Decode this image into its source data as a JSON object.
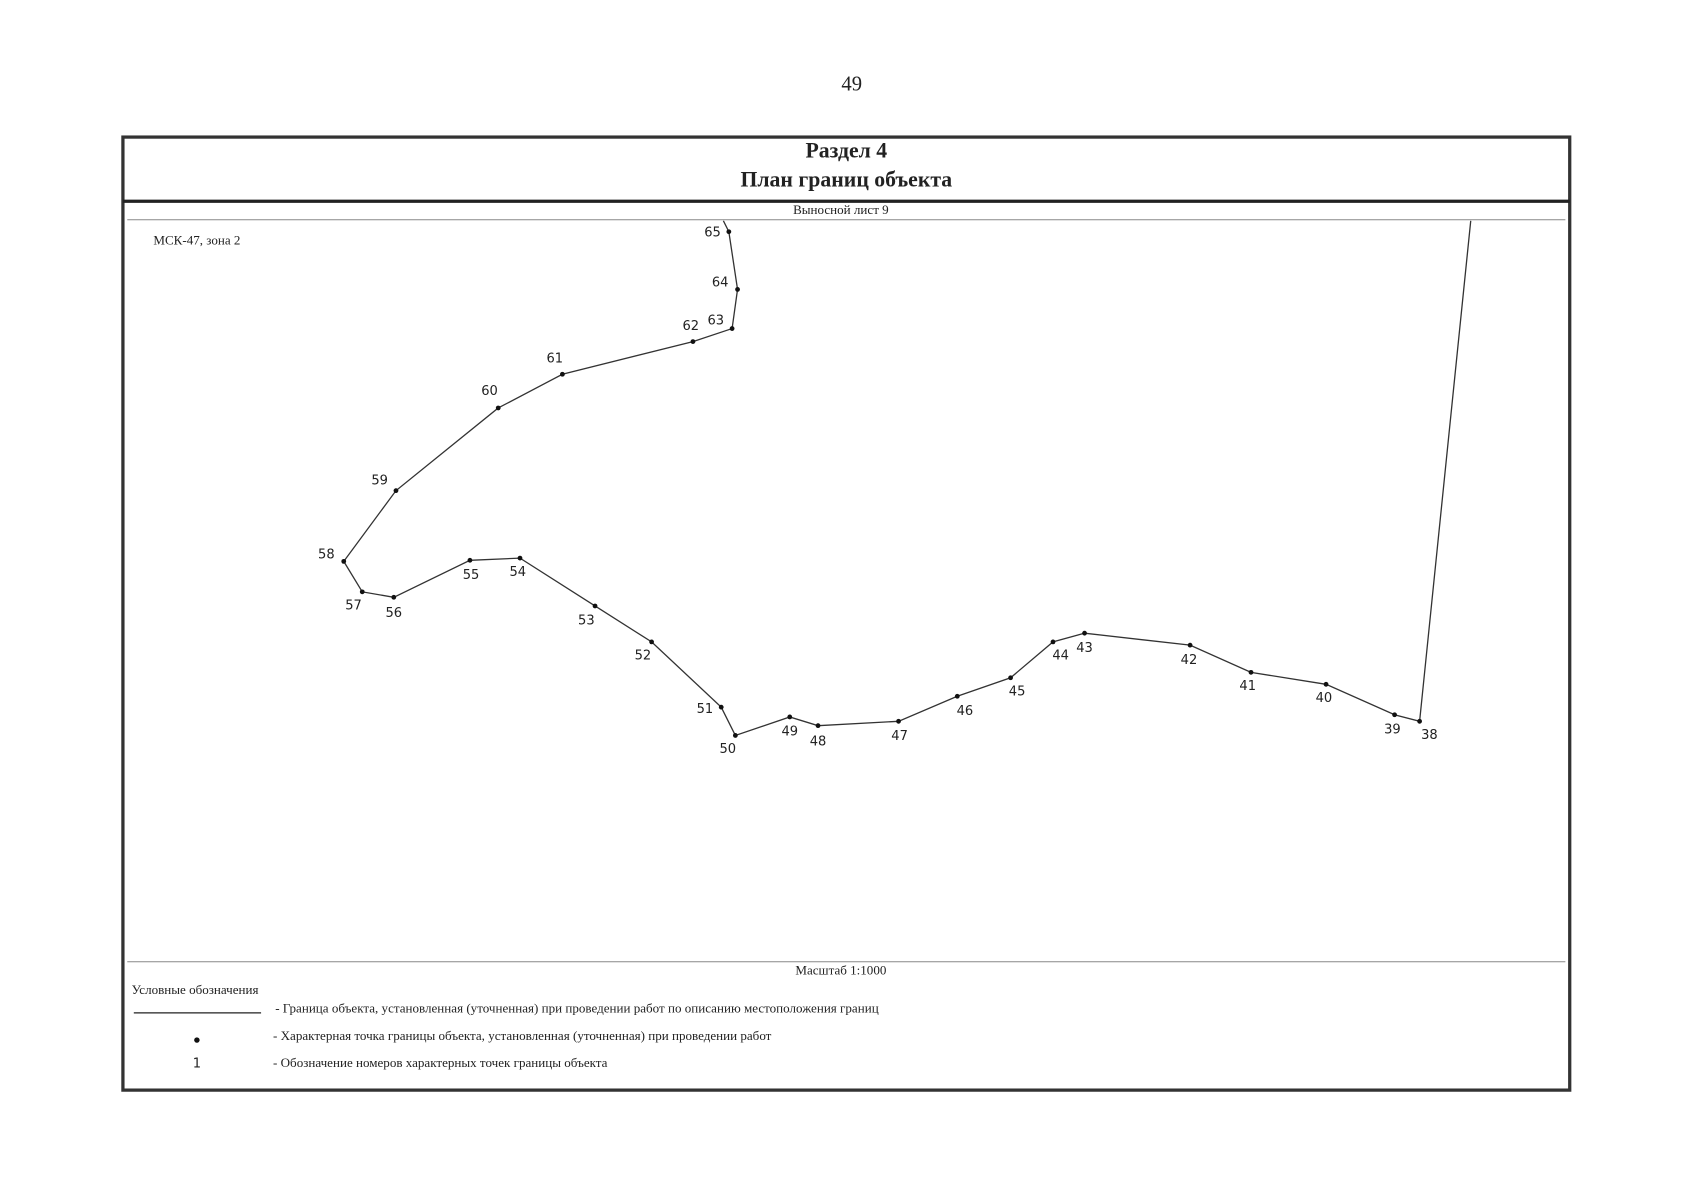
{
  "page_number": "49",
  "header": {
    "section": "Раздел 4",
    "title": "План границ объекта",
    "sheet": "Выносной лист 9"
  },
  "map": {
    "crs": "МСК-47, зона 2",
    "points": [
      "65",
      "64",
      "63",
      "62",
      "61",
      "60",
      "59",
      "58",
      "57",
      "56",
      "55",
      "54",
      "53",
      "52",
      "51",
      "50",
      "49",
      "48",
      "47",
      "46",
      "45",
      "44",
      "43",
      "42",
      "41",
      "40",
      "39",
      "38"
    ],
    "scale": "Масштаб 1:1000"
  },
  "legend": {
    "title": "Условные обозначения",
    "items": [
      {
        "text": "- Граница  объекта, установленная (уточненная) при проведении работ по описанию местоположения границ"
      },
      {
        "text": "- Характерная точка границы объекта, установленная (уточненная) при проведении работ"
      },
      {
        "symbol": "1",
        "text": "- Обозначение номеров характерных точек границы объекта"
      }
    ]
  }
}
